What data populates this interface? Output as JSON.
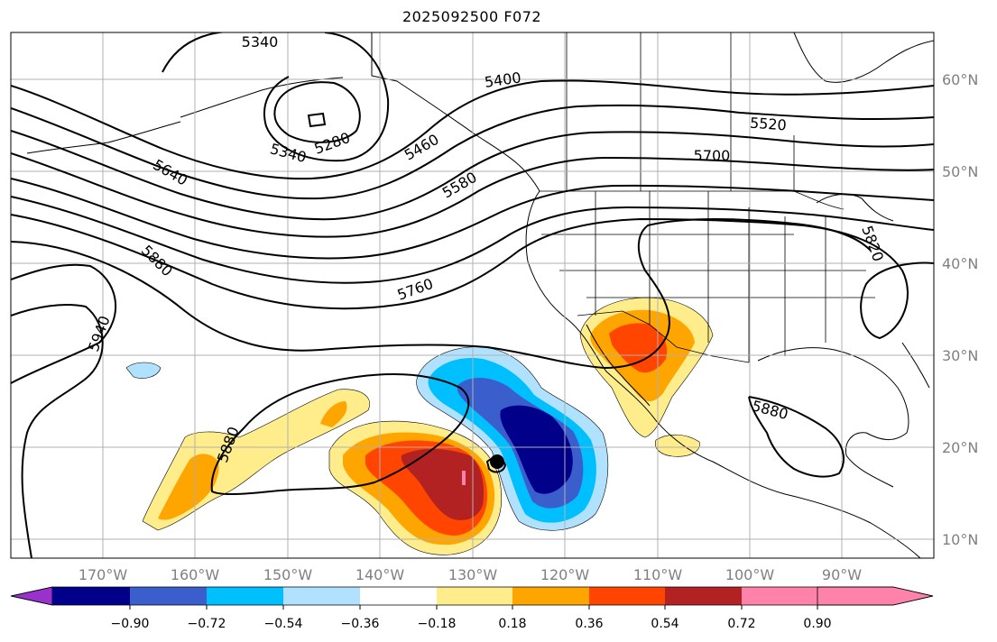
{
  "title": "2025092500 F072",
  "longitude_labels": [
    "170°W",
    "160°W",
    "150°W",
    "140°W",
    "130°W",
    "120°W",
    "110°W",
    "100°W",
    "90°W"
  ],
  "latitude_labels": [
    "60°N",
    "50°N",
    "40°N",
    "30°N",
    "20°N",
    "10°N"
  ],
  "contour_labels": [
    "5340",
    "5280",
    "5340",
    "5400",
    "5460",
    "5520",
    "5580",
    "5640",
    "5700",
    "5760",
    "5820",
    "5880",
    "5940",
    "5880",
    "5880"
  ],
  "colorbar": {
    "ticks": [
      "−0.90",
      "−0.72",
      "−0.54",
      "−0.36",
      "−0.18",
      "0.18",
      "0.36",
      "0.54",
      "0.72",
      "0.90"
    ],
    "colors": [
      "#9932cc",
      "#00008b",
      "#3a5fcd",
      "#00bfff",
      "#b0e2ff",
      "#ffffff",
      "#ffec8b",
      "#ffa500",
      "#ff4500",
      "#b22222",
      "#ff82ab"
    ]
  }
}
